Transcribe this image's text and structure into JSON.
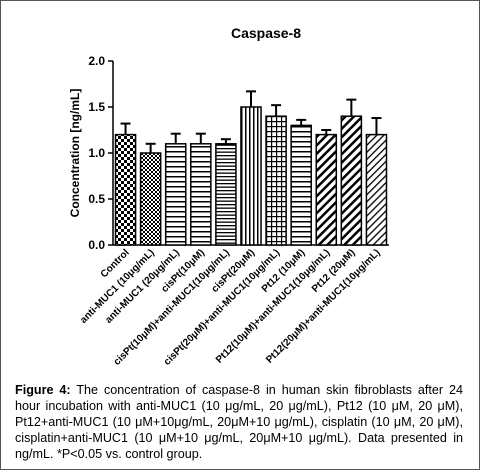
{
  "chart_data": {
    "type": "bar",
    "title": "Caspase-8",
    "y_label": "Concentration [ng/mL]",
    "categories": [
      "Control",
      "anti-MUC1 (10μg/mL)",
      "anti-MUC1 (20μg/mL)",
      "cisPt(10μM)",
      "cisPt(10μM)+anti-MUC1(10μg/mL)",
      "cisPt(20μM)",
      "cisPt(20μM)+anti-MUC1(10μg/mL)",
      "Pt12 (10μM)",
      "Pt12(10μM)+anti-MUC1(10μg/mL)",
      "Pt12 (20μM)",
      "Pt12(20μM)+anti-MUC1(10μg/mL)"
    ],
    "values": [
      1.2,
      1.0,
      1.1,
      1.1,
      1.1,
      1.5,
      1.4,
      1.3,
      1.2,
      1.4,
      1.2
    ],
    "errors": [
      0.12,
      0.1,
      0.11,
      0.11,
      0.05,
      0.17,
      0.12,
      0.06,
      0.05,
      0.18,
      0.18
    ],
    "patterns": [
      "checker",
      "checker-fine",
      "hlines",
      "hlines",
      "hlines-dense",
      "vlines",
      "grid",
      "hlines",
      "diag",
      "diag",
      "diag-thin"
    ],
    "color": "#000000",
    "ylim": [
      0,
      2
    ],
    "yticks": [
      {
        "value": 0,
        "label": "0.0"
      },
      {
        "value": 0.5,
        "label": "0.5"
      },
      {
        "value": 1,
        "label": "1.0"
      },
      {
        "value": 1.5,
        "label": "1.5"
      },
      {
        "value": 2,
        "label": "2.0"
      }
    ]
  },
  "caption": {
    "label": "Figure 4:",
    "text": " The concentration of caspase-8 in human skin fibroblasts after 24 hour incubation with anti-MUC1 (10 μg/mL, 20 μg/mL), Pt12 (10 μM, 20 μM), Pt12+anti-MUC1 (10 μM+10μg/mL, 20μM+10 μg/mL), cisplatin (10 μM, 20 μM), cisplatin+anti-MUC1 (10 μM+10 μg/mL, 20μM+10 μg/mL). Data presented in ng/mL. *P<0.05 vs. control group."
  }
}
